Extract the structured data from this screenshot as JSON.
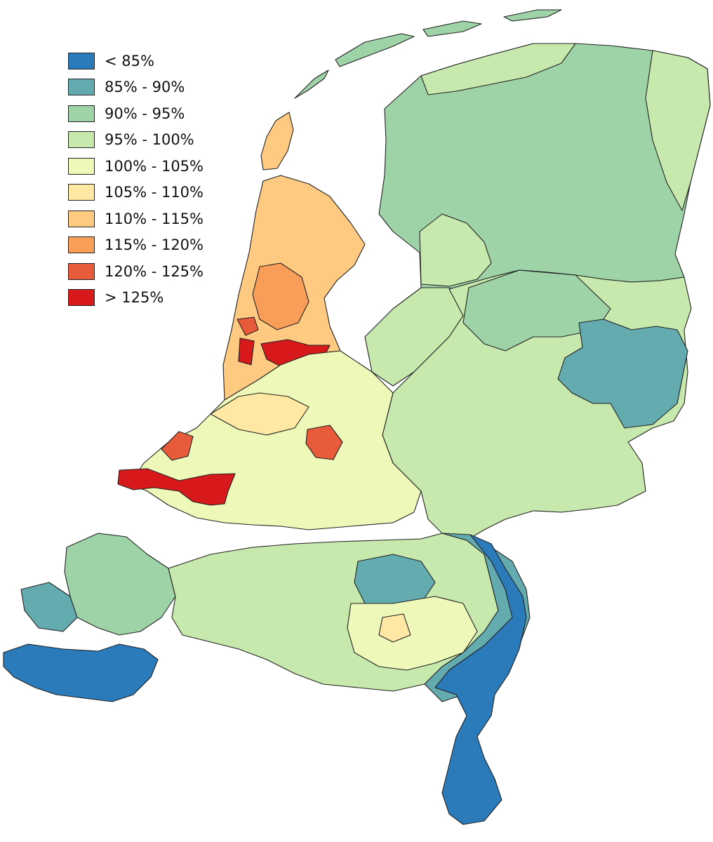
{
  "legend": {
    "items": [
      {
        "label": "< 85%",
        "color": "#2b7bba"
      },
      {
        "label": "85% - 90%",
        "color": "#64abb0"
      },
      {
        "label": "90% - 95%",
        "color": "#9dd3a7"
      },
      {
        "label": "95% - 100%",
        "color": "#c7e9ad"
      },
      {
        "label": "100% - 105%",
        "color": "#edf8b9"
      },
      {
        "label": "105% - 110%",
        "color": "#fee8a4"
      },
      {
        "label": "110% - 115%",
        "color": "#fec980"
      },
      {
        "label": "115% - 120%",
        "color": "#f99e59"
      },
      {
        "label": "120% - 125%",
        "color": "#e85b3a"
      },
      {
        "label": "> 125%",
        "color": "#d7191c"
      }
    ]
  },
  "map": {
    "region": "Netherlands municipalities",
    "class_colors": {
      "lt85": "#2b7bba",
      "c85_90": "#64abb0",
      "c90_95": "#9dd3a7",
      "c95_100": "#c7e9ad",
      "c100_105": "#edf8b9",
      "c105_110": "#fee8a4",
      "c110_115": "#fec980",
      "c115_120": "#f99e59",
      "c120_125": "#e85b3a",
      "gt125": "#d7191c"
    }
  }
}
